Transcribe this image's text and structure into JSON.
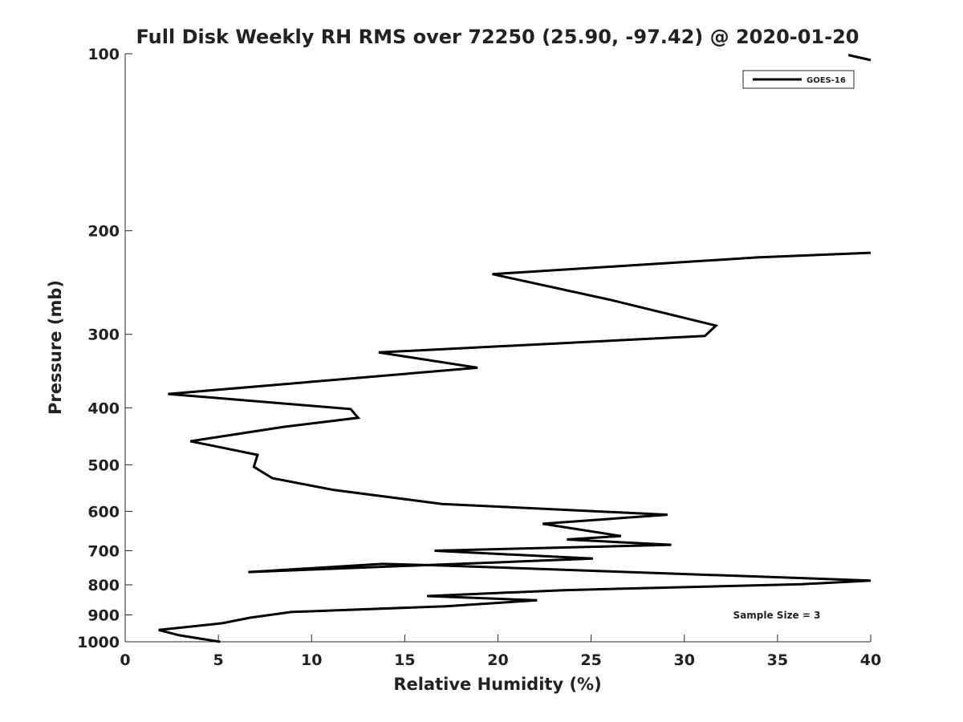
{
  "chart_data": {
    "type": "line",
    "title": "Full Disk Weekly RH RMS over 72250 (25.90, -97.42) @ 2020-01-20",
    "xlabel": "Relative Humidity (%)",
    "ylabel": "Pressure (mb)",
    "xlim": [
      0,
      40
    ],
    "ylim": [
      1000,
      100
    ],
    "yscale": "log",
    "x_ticks": [
      "0",
      "5",
      "10",
      "15",
      "20",
      "25",
      "30",
      "35",
      "40"
    ],
    "y_ticks": [
      "100",
      "200",
      "300",
      "400",
      "500",
      "600",
      "700",
      "800",
      "900",
      "1000"
    ],
    "grid": false,
    "legend_position": "top-right",
    "annotation": "Sample Size = 3",
    "series": [
      {
        "name": "GOES-16",
        "color": "#000000",
        "x": [
          5.1,
          2.9,
          1.8,
          5.2,
          6.7,
          8.9,
          17.2,
          22.1,
          16.2,
          23.5,
          36.3,
          40,
          40,
          17.1,
          13.8,
          6.6,
          25.1,
          16.6,
          29.3,
          23.7,
          26.6,
          22.4,
          29.1,
          17.0,
          11.2,
          7.9,
          6.9,
          7.1,
          3.5,
          8.5,
          12.5,
          12.1,
          2.3,
          18.9,
          13.6,
          31.1,
          31.7,
          26.0,
          19.7,
          33.9,
          40
        ],
        "y": [
          1000,
          975,
          955,
          930,
          910,
          890,
          870,
          850,
          836,
          817,
          798,
          787,
          787,
          742,
          737,
          761,
          722,
          700,
          684,
          670,
          661,
          630,
          608,
          583,
          552,
          527,
          504,
          481,
          456,
          431,
          416,
          402,
          379,
          342,
          322,
          302,
          290,
          262,
          237,
          222,
          218
        ]
      },
      {
        "name": "",
        "color": "#000000",
        "x": [
          38.8,
          40
        ],
        "y": [
          100.5,
          102.5
        ]
      }
    ]
  }
}
